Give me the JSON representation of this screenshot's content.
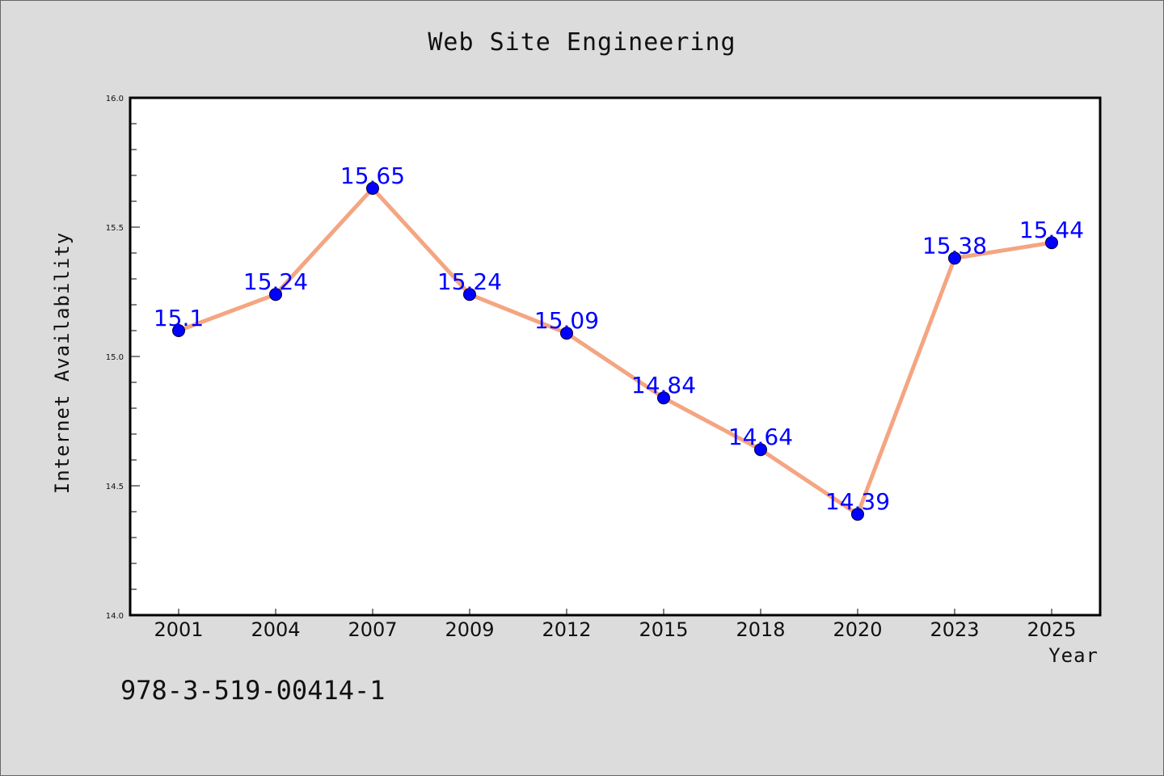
{
  "title": "Web Site Engineering",
  "footer_code": "978-3-519-00414-1",
  "colors": {
    "line": "#f4a582",
    "marker": "#0000ff",
    "label": "#0000ff",
    "plot_background": "#ffffff",
    "page_background": "#dcdcdc"
  },
  "chart_data": {
    "type": "line",
    "title": "Web Site Engineering",
    "xlabel": "Year",
    "ylabel": "Internet Availability",
    "categories": [
      "2001",
      "2004",
      "2007",
      "2009",
      "2012",
      "2015",
      "2018",
      "2020",
      "2023",
      "2025"
    ],
    "series": [
      {
        "values": [
          15.1,
          15.24,
          15.65,
          15.24,
          15.09,
          14.84,
          14.64,
          14.39,
          15.38,
          15.44
        ]
      }
    ],
    "data_labels": [
      "15.1",
      "15.24",
      "15.65",
      "15.24",
      "15.09",
      "14.84",
      "14.64",
      "14.39",
      "15.38",
      "15.44"
    ],
    "ylim": [
      14.0,
      16.0
    ],
    "yticks": [
      "14.0",
      "14.5",
      "15.0",
      "15.5",
      "16.0"
    ],
    "grid": false,
    "legend": "none"
  }
}
